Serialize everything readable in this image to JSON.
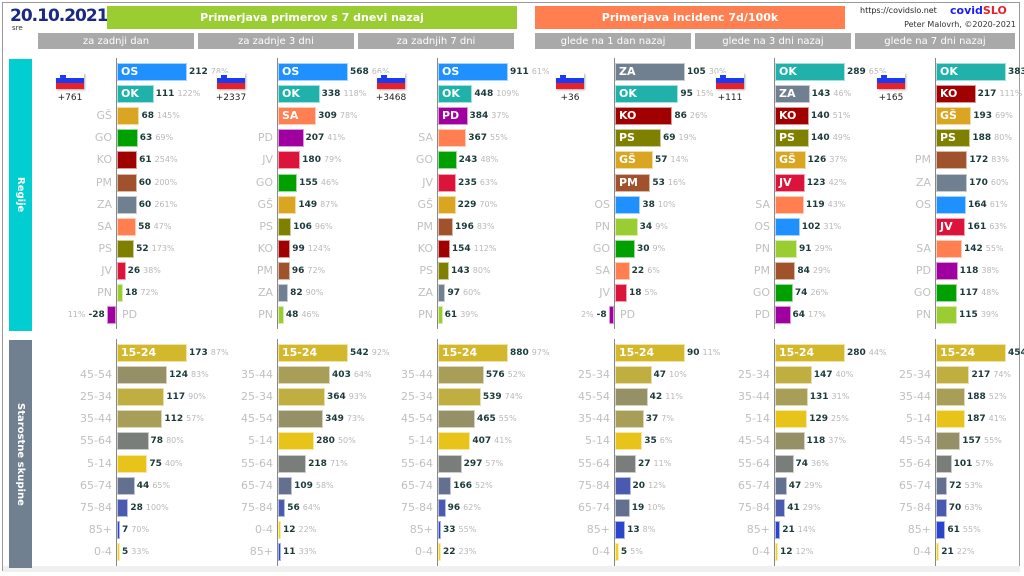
{
  "header": {
    "date": "20.10.2021",
    "weekday": "sre",
    "group_cases": "Primerjava primerov s 7 dnevi nazaj",
    "group_incidence": "Primerjava incidenc 7d/100k",
    "subheaders": [
      "za zadnji dan",
      "za zadnje 3 dni",
      "za zadnjih 7 dni",
      "glede na 1 dan nazaj",
      "glede na 3 dni nazaj",
      "glede na 7 dni nazaj"
    ],
    "url": "https://covidslo.net",
    "brand_part1": "covid",
    "brand_part2": "SLO",
    "author": "Peter Malovrh, ©2020-2021"
  },
  "sections": {
    "regions": "Regije",
    "ages": "Starostne skupine"
  },
  "colors": {
    "accent_green": "#9acd32",
    "accent_orange": "#ff7f50",
    "regions_side": "#00ced1",
    "ages_side": "#708090",
    "date": "#1a2a80"
  },
  "chart_data": [
    {
      "type": "bar",
      "title": "za zadnji dan",
      "slovenia_delta": "+761",
      "region": {
        "categories": [
          "OS",
          "OK",
          "GŠ",
          "GO",
          "KO",
          "PM",
          "ZA",
          "SA",
          "PS",
          "JV",
          "PN",
          "PD"
        ],
        "values": [
          212,
          111,
          68,
          63,
          61,
          60,
          60,
          58,
          52,
          26,
          18,
          -28
        ],
        "pct": [
          "78%",
          "122%",
          "145%",
          "69%",
          "254%",
          "200%",
          "261%",
          "47%",
          "173%",
          "38%",
          "72%",
          "11%"
        ],
        "labels_inside": 2
      },
      "age": {
        "categories": [
          "15-24",
          "45-54",
          "25-34",
          "35-44",
          "55-64",
          "5-14",
          "65-74",
          "75-84",
          "85+",
          "0-4"
        ],
        "values": [
          173,
          124,
          117,
          112,
          78,
          75,
          44,
          28,
          7,
          5
        ],
        "pct": [
          "87%",
          "83%",
          "90%",
          "57%",
          "80%",
          "40%",
          "65%",
          "100%",
          "70%",
          "33%"
        ],
        "labels_inside": 1
      }
    },
    {
      "type": "bar",
      "title": "za zadnje 3 dni",
      "slovenia_delta": "+2337",
      "region": {
        "categories": [
          "OS",
          "OK",
          "SA",
          "PD",
          "JV",
          "GO",
          "GŠ",
          "PS",
          "KO",
          "PM",
          "ZA",
          "PN"
        ],
        "values": [
          568,
          338,
          309,
          207,
          180,
          155,
          149,
          106,
          99,
          96,
          82,
          48
        ],
        "pct": [
          "66%",
          "118%",
          "78%",
          "41%",
          "79%",
          "46%",
          "87%",
          "96%",
          "124%",
          "72%",
          "90%",
          "46%"
        ],
        "labels_inside": 3
      },
      "age": {
        "categories": [
          "15-24",
          "35-44",
          "25-34",
          "45-54",
          "5-14",
          "55-64",
          "65-74",
          "75-84",
          "0-4",
          "85+"
        ],
        "values": [
          542,
          403,
          364,
          349,
          280,
          218,
          109,
          56,
          12,
          11
        ],
        "pct": [
          "92%",
          "64%",
          "93%",
          "73%",
          "50%",
          "71%",
          "58%",
          "64%",
          "22%",
          "33%"
        ],
        "labels_inside": 1
      }
    },
    {
      "type": "bar",
      "title": "za zadnjih 7 dni",
      "slovenia_delta": "+3468",
      "region": {
        "categories": [
          "OS",
          "OK",
          "PD",
          "SA",
          "GO",
          "JV",
          "GŠ",
          "PM",
          "KO",
          "PS",
          "ZA",
          "PN"
        ],
        "values": [
          911,
          448,
          384,
          367,
          243,
          235,
          229,
          196,
          154,
          143,
          97,
          61
        ],
        "pct": [
          "61%",
          "109%",
          "37%",
          "55%",
          "48%",
          "63%",
          "70%",
          "83%",
          "112%",
          "80%",
          "60%",
          "39%"
        ],
        "labels_inside": 3
      },
      "age": {
        "categories": [
          "15-24",
          "35-44",
          "25-34",
          "45-54",
          "5-14",
          "55-64",
          "65-74",
          "75-84",
          "85+",
          "0-4"
        ],
        "values": [
          880,
          576,
          539,
          465,
          407,
          297,
          166,
          96,
          33,
          22
        ],
        "pct": [
          "97%",
          "52%",
          "74%",
          "55%",
          "41%",
          "57%",
          "52%",
          "62%",
          "55%",
          "23%"
        ],
        "labels_inside": 1
      }
    },
    {
      "type": "bar",
      "title": "glede na 1 dan nazaj",
      "slovenia_delta": "+36",
      "region": {
        "categories": [
          "ZA",
          "OK",
          "KO",
          "PS",
          "GŠ",
          "PM",
          "OS",
          "PN",
          "GO",
          "SA",
          "JV",
          "PD"
        ],
        "values": [
          105,
          95,
          86,
          69,
          57,
          53,
          38,
          34,
          30,
          22,
          18,
          -8
        ],
        "pct": [
          "30%",
          "15%",
          "26%",
          "19%",
          "14%",
          "16%",
          "10%",
          "9%",
          "9%",
          "6%",
          "5%",
          "2%"
        ],
        "labels_inside": 6
      },
      "age": {
        "categories": [
          "15-24",
          "25-34",
          "45-54",
          "35-44",
          "5-14",
          "55-64",
          "75-84",
          "65-74",
          "85+",
          "0-4"
        ],
        "values": [
          90,
          47,
          42,
          37,
          35,
          27,
          20,
          19,
          13,
          5
        ],
        "pct": [
          "11%",
          "10%",
          "11%",
          "7%",
          "6%",
          "11%",
          "12%",
          "10%",
          "8%",
          "5%"
        ],
        "labels_inside": 1
      }
    },
    {
      "type": "bar",
      "title": "glede na 3 dni nazaj",
      "slovenia_delta": "+111",
      "region": {
        "categories": [
          "OK",
          "ZA",
          "KO",
          "PS",
          "GŠ",
          "JV",
          "SA",
          "OS",
          "PN",
          "PM",
          "GO",
          "PD"
        ],
        "values": [
          289,
          143,
          140,
          140,
          126,
          123,
          119,
          102,
          91,
          84,
          74,
          64
        ],
        "pct": [
          "65%",
          "46%",
          "51%",
          "49%",
          "37%",
          "42%",
          "43%",
          "31%",
          "29%",
          "29%",
          "26%",
          "17%"
        ],
        "labels_inside": 6
      },
      "age": {
        "categories": [
          "15-24",
          "25-34",
          "35-44",
          "5-14",
          "45-54",
          "55-64",
          "65-74",
          "75-84",
          "85+",
          "0-4"
        ],
        "values": [
          280,
          147,
          131,
          129,
          118,
          74,
          47,
          41,
          21,
          12
        ],
        "pct": [
          "44%",
          "40%",
          "31%",
          "25%",
          "37%",
          "36%",
          "29%",
          "29%",
          "14%",
          "12%"
        ],
        "labels_inside": 1
      }
    },
    {
      "type": "bar",
      "title": "glede na 7 dni nazaj",
      "slovenia_delta": "+165",
      "region": {
        "categories": [
          "OK",
          "KO",
          "GŠ",
          "PS",
          "PM",
          "ZA",
          "OS",
          "JV",
          "SA",
          "PD",
          "GO",
          "PN"
        ],
        "values": [
          383,
          217,
          193,
          188,
          172,
          170,
          164,
          161,
          142,
          118,
          117,
          115
        ],
        "pct": [
          "108%",
          "111%",
          "69%",
          "80%",
          "83%",
          "60%",
          "61%",
          "63%",
          "55%",
          "38%",
          "48%",
          "39%"
        ],
        "labels_inside": 4,
        "extra_inside": [
          "JV"
        ]
      },
      "age": {
        "categories": [
          "15-24",
          "25-34",
          "35-44",
          "5-14",
          "45-54",
          "55-64",
          "65-74",
          "75-84",
          "85+",
          "0-4"
        ],
        "values": [
          454,
          217,
          188,
          187,
          157,
          101,
          72,
          70,
          61,
          21
        ],
        "pct": [
          "97%",
          "74%",
          "52%",
          "41%",
          "55%",
          "57%",
          "53%",
          "63%",
          "55%",
          "22%"
        ],
        "labels_inside": 1
      }
    }
  ],
  "palette": {
    "OS": "#1e90ff",
    "OK": "#20b2aa",
    "GŠ": "#daa520",
    "GO": "#00a000",
    "KO": "#a00000",
    "PM": "#a0522d",
    "ZA": "#708090",
    "SA": "#ff7f50",
    "PS": "#808000",
    "JV": "#dc143c",
    "PN": "#9acd32",
    "PD": "#a000a0",
    "15-24": "#d4b82c",
    "25-34": "#c0ae40",
    "35-44": "#a89e58",
    "45-54": "#969066",
    "55-64": "#7a7e7a",
    "5-14": "#e8c41a",
    "65-74": "#647090",
    "75-84": "#4a5ab0",
    "85+": "#2a44cc",
    "0-4": "#f0d020"
  }
}
